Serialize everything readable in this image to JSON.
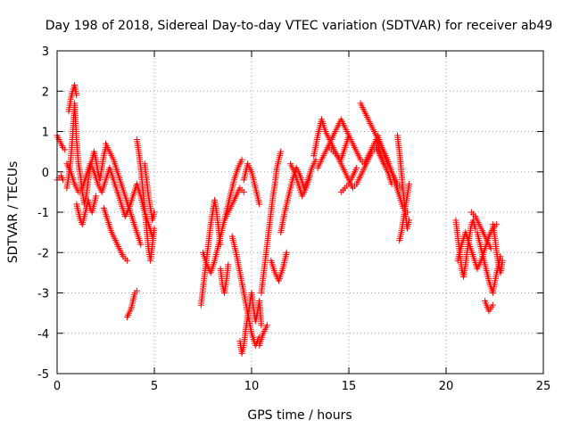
{
  "chart_data": {
    "type": "scatter",
    "title": "Day 198 of 2018, Sidereal Day-to-day VTEC variation (SDTVAR) for receiver ab49",
    "xlabel": "GPS time / hours",
    "ylabel": "SDTVAR / TECUs",
    "xlim": [
      0,
      25
    ],
    "ylim": [
      -5,
      3
    ],
    "x_ticks": [
      0,
      5,
      10,
      15,
      20,
      25
    ],
    "y_ticks": [
      -5,
      -4,
      -3,
      -2,
      -1,
      0,
      1,
      2,
      3
    ],
    "x_tick_labels": [
      "0",
      "5",
      "10",
      "15",
      "20",
      "25"
    ],
    "y_tick_labels": [
      "-5",
      "-4",
      "-3",
      "-2",
      "-1",
      "0",
      "1",
      "2",
      "3"
    ],
    "grid": true,
    "marker": "+",
    "color": "#ff0000",
    "series": [
      {
        "name": "SDTVAR",
        "segments": [
          {
            "x": [
              0.0,
              0.1,
              0.2,
              0.3,
              0.4
            ],
            "y": [
              0.9,
              0.8,
              0.7,
              0.6,
              0.55
            ]
          },
          {
            "x": [
              0.0,
              0.1,
              0.2,
              0.3
            ],
            "y": [
              -0.2,
              -0.15,
              -0.1,
              -0.2
            ]
          },
          {
            "x": [
              0.5,
              0.6,
              0.7,
              0.8,
              0.9,
              1.0,
              1.1,
              1.2,
              1.3,
              1.4,
              1.5,
              1.6,
              1.7,
              1.8,
              1.9,
              2.0,
              2.1,
              2.2,
              2.3,
              2.4,
              2.5
            ],
            "y": [
              -0.4,
              -0.1,
              0.3,
              0.9,
              1.7,
              0.8,
              0.2,
              -0.1,
              -0.5,
              -0.8,
              -0.6,
              -0.2,
              0.1,
              0.3,
              0.5,
              0.3,
              0.0,
              -0.2,
              0.1,
              0.4,
              0.6
            ]
          },
          {
            "x": [
              0.6,
              0.7,
              0.8,
              0.9,
              1.0
            ],
            "y": [
              1.5,
              1.8,
              2.0,
              2.15,
              1.9
            ]
          },
          {
            "x": [
              0.5,
              0.7,
              0.9,
              1.1,
              1.3,
              1.5,
              1.7,
              1.9,
              2.1,
              2.3,
              2.5,
              2.7,
              2.9,
              3.1,
              3.3,
              3.5,
              3.7,
              3.9,
              4.1,
              4.3,
              4.5,
              4.7,
              4.9
            ],
            "y": [
              0.2,
              0.0,
              -0.3,
              -0.5,
              -0.4,
              -0.1,
              0.2,
              0.0,
              -0.3,
              -0.5,
              -0.2,
              0.1,
              -0.2,
              -0.5,
              -0.8,
              -1.1,
              -0.9,
              -0.6,
              -0.3,
              -0.6,
              -1.0,
              -1.3,
              -1.6
            ]
          },
          {
            "x": [
              1.0,
              1.1,
              1.2,
              1.3,
              1.4,
              1.5,
              1.6,
              1.7,
              1.8,
              1.9,
              2.0
            ],
            "y": [
              -0.8,
              -1.0,
              -1.2,
              -1.3,
              -1.1,
              -0.9,
              -0.7,
              -0.9,
              -1.0,
              -0.8,
              -0.6
            ]
          },
          {
            "x": [
              2.4,
              2.6,
              2.8,
              3.0,
              3.2,
              3.4,
              3.6
            ],
            "y": [
              -0.9,
              -1.2,
              -1.5,
              -1.7,
              -1.9,
              -2.1,
              -2.2
            ]
          },
          {
            "x": [
              2.5,
              2.7,
              2.9,
              3.1,
              3.3,
              3.5,
              3.7,
              3.9,
              4.1,
              4.3
            ],
            "y": [
              0.7,
              0.5,
              0.3,
              0.0,
              -0.3,
              -0.6,
              -0.9,
              -1.2,
              -1.5,
              -1.8
            ]
          },
          {
            "x": [
              3.6,
              3.7,
              3.8,
              3.9,
              4.0,
              4.1
            ],
            "y": [
              -3.6,
              -3.5,
              -3.4,
              -3.2,
              -3.0,
              -2.95
            ]
          },
          {
            "x": [
              4.1,
              4.2,
              4.3,
              4.4,
              4.5,
              4.6,
              4.7,
              4.8,
              4.9,
              5.0
            ],
            "y": [
              0.8,
              0.5,
              0.1,
              -0.4,
              -0.9,
              -1.4,
              -1.9,
              -2.2,
              -1.8,
              -1.4
            ]
          },
          {
            "x": [
              4.5,
              4.6,
              4.7,
              4.8,
              4.9,
              5.0
            ],
            "y": [
              0.2,
              -0.2,
              -0.6,
              -0.9,
              -1.2,
              -1.0
            ]
          },
          {
            "x": [
              7.4,
              7.5,
              7.6,
              7.7,
              7.8,
              7.9,
              8.0,
              8.1,
              8.2,
              8.3,
              8.4
            ],
            "y": [
              -3.3,
              -2.9,
              -2.5,
              -2.1,
              -1.7,
              -1.3,
              -1.0,
              -0.7,
              -1.0,
              -1.4,
              -1.8
            ]
          },
          {
            "x": [
              7.5,
              7.7,
              7.9,
              8.1,
              8.3,
              8.5,
              8.7,
              8.9,
              9.1,
              9.3,
              9.5
            ],
            "y": [
              -2.0,
              -2.3,
              -2.5,
              -2.2,
              -1.8,
              -1.4,
              -1.0,
              -0.6,
              -0.2,
              0.1,
              0.3
            ]
          },
          {
            "x": [
              8.4,
              8.5,
              8.6,
              8.7,
              8.8
            ],
            "y": [
              -2.4,
              -2.8,
              -3.0,
              -2.7,
              -2.3
            ]
          },
          {
            "x": [
              8.6,
              8.8,
              9.0,
              9.2,
              9.4,
              9.6
            ],
            "y": [
              -1.2,
              -1.0,
              -0.8,
              -0.6,
              -0.4,
              -0.5
            ]
          },
          {
            "x": [
              9.0,
              9.2,
              9.4,
              9.6,
              9.8,
              10.0,
              10.2,
              10.4
            ],
            "y": [
              -1.6,
              -2.0,
              -2.5,
              -3.0,
              -3.5,
              -4.0,
              -4.3,
              -4.1
            ]
          },
          {
            "x": [
              9.4,
              9.5,
              9.6,
              9.7,
              9.8,
              9.9,
              10.0,
              10.1,
              10.2,
              10.3,
              10.4,
              10.5
            ],
            "y": [
              -4.2,
              -4.5,
              -4.3,
              -3.9,
              -3.6,
              -3.3,
              -3.0,
              -3.4,
              -3.7,
              -3.5,
              -3.2,
              -3.8
            ]
          },
          {
            "x": [
              9.6,
              9.8,
              10.0,
              10.2,
              10.4
            ],
            "y": [
              -0.2,
              0.2,
              0.0,
              -0.4,
              -0.8
            ]
          },
          {
            "x": [
              10.5,
              10.6,
              10.7,
              10.8,
              10.9,
              11.0,
              11.1,
              11.2,
              11.3,
              11.4,
              11.5
            ],
            "y": [
              -3.0,
              -2.6,
              -2.2,
              -1.8,
              -1.4,
              -1.0,
              -0.6,
              -0.3,
              0.1,
              0.3,
              0.5
            ]
          },
          {
            "x": [
              10.4,
              10.6,
              10.8
            ],
            "y": [
              -4.3,
              -4.0,
              -3.8
            ]
          },
          {
            "x": [
              11.0,
              11.2,
              11.4,
              11.6,
              11.8
            ],
            "y": [
              -2.2,
              -2.5,
              -2.7,
              -2.4,
              -2.0
            ]
          },
          {
            "x": [
              11.5,
              11.7,
              11.9,
              12.1,
              12.3,
              12.5,
              12.7,
              12.9,
              13.1,
              13.3
            ],
            "y": [
              -1.5,
              -1.0,
              -0.6,
              -0.2,
              0.1,
              -0.1,
              -0.4,
              -0.2,
              0.1,
              0.3
            ]
          },
          {
            "x": [
              12.0,
              12.2,
              12.4,
              12.6,
              12.8,
              13.0
            ],
            "y": [
              0.2,
              0.0,
              -0.3,
              -0.6,
              -0.4,
              -0.1
            ]
          },
          {
            "x": [
              13.2,
              13.4,
              13.6,
              13.8,
              14.0,
              14.2,
              14.4,
              14.6,
              14.8,
              15.0
            ],
            "y": [
              0.4,
              0.9,
              1.3,
              1.0,
              0.8,
              0.6,
              0.4,
              0.3,
              0.6,
              0.9
            ]
          },
          {
            "x": [
              13.4,
              13.6,
              13.8,
              14.0,
              14.2,
              14.4,
              14.6,
              14.8,
              15.0,
              15.2,
              15.4,
              15.6,
              15.8,
              16.0,
              16.2,
              16.4,
              16.6,
              16.8,
              17.0,
              17.2
            ],
            "y": [
              0.1,
              0.3,
              0.5,
              0.7,
              0.9,
              1.1,
              1.3,
              1.1,
              0.9,
              0.7,
              0.5,
              0.3,
              0.2,
              0.4,
              0.6,
              0.8,
              0.5,
              0.2,
              0.0,
              -0.3
            ]
          },
          {
            "x": [
              14.0,
              14.2,
              14.4,
              14.6,
              14.8,
              15.0,
              15.2,
              15.4,
              15.6,
              15.8,
              16.0,
              16.2,
              16.4,
              16.6,
              16.8
            ],
            "y": [
              0.6,
              0.5,
              0.4,
              0.2,
              0.0,
              -0.2,
              -0.4,
              -0.3,
              -0.1,
              0.1,
              0.3,
              0.5,
              0.6,
              0.4,
              0.2
            ]
          },
          {
            "x": [
              14.6,
              14.8,
              15.0,
              15.2,
              15.4
            ],
            "y": [
              -0.5,
              -0.4,
              -0.3,
              -0.1,
              0.1
            ]
          },
          {
            "x": [
              15.6,
              15.8,
              16.0,
              16.2,
              16.4,
              16.6,
              16.8,
              17.0,
              17.2,
              17.4,
              17.6,
              17.8,
              18.0
            ],
            "y": [
              1.7,
              1.5,
              1.3,
              1.1,
              0.9,
              0.7,
              0.5,
              0.3,
              0.0,
              -0.3,
              -0.6,
              -0.9,
              -1.0
            ]
          },
          {
            "x": [
              16.5,
              16.7,
              16.9,
              17.1,
              17.3,
              17.5,
              17.7
            ],
            "y": [
              0.9,
              0.6,
              0.3,
              0.1,
              -0.1,
              -0.3,
              -0.4
            ]
          },
          {
            "x": [
              17.5,
              17.6,
              17.7,
              17.8,
              17.9,
              18.0,
              18.1
            ],
            "y": [
              0.9,
              0.5,
              0.0,
              -0.5,
              -1.0,
              -1.4,
              -1.2
            ]
          },
          {
            "x": [
              17.6,
              17.7,
              17.8,
              17.9,
              18.0,
              18.1
            ],
            "y": [
              -1.7,
              -1.5,
              -1.2,
              -0.9,
              -0.6,
              -0.3
            ]
          },
          {
            "x": [
              20.5,
              20.6,
              20.7,
              20.8,
              20.9,
              21.0,
              21.1,
              21.2,
              21.3,
              21.4,
              21.5
            ],
            "y": [
              -1.2,
              -1.6,
              -2.0,
              -2.4,
              -2.6,
              -2.3,
              -1.9,
              -1.6,
              -1.3,
              -1.2,
              -1.4
            ]
          },
          {
            "x": [
              20.6,
              20.8,
              21.0,
              21.2,
              21.4,
              21.6,
              21.8,
              22.0,
              22.2,
              22.4,
              22.6
            ],
            "y": [
              -2.2,
              -1.8,
              -1.5,
              -1.8,
              -2.1,
              -2.4,
              -2.2,
              -1.9,
              -1.6,
              -1.4,
              -1.3
            ]
          },
          {
            "x": [
              21.3,
              21.5,
              21.7,
              21.9,
              22.1,
              22.3
            ],
            "y": [
              -1.0,
              -1.1,
              -1.3,
              -1.5,
              -1.7,
              -1.9
            ]
          },
          {
            "x": [
              21.6,
              21.8,
              22.0,
              22.2,
              22.4,
              22.6,
              22.8
            ],
            "y": [
              -1.5,
              -1.9,
              -2.3,
              -2.7,
              -3.0,
              -2.5,
              -2.1
            ]
          },
          {
            "x": [
              22.0,
              22.2,
              22.4
            ],
            "y": [
              -3.2,
              -3.45,
              -3.3
            ]
          },
          {
            "x": [
              22.4,
              22.5,
              22.6,
              22.7,
              22.8,
              22.9
            ],
            "y": [
              -1.3,
              -1.6,
              -2.0,
              -2.3,
              -2.5,
              -2.2
            ]
          }
        ]
      }
    ]
  }
}
